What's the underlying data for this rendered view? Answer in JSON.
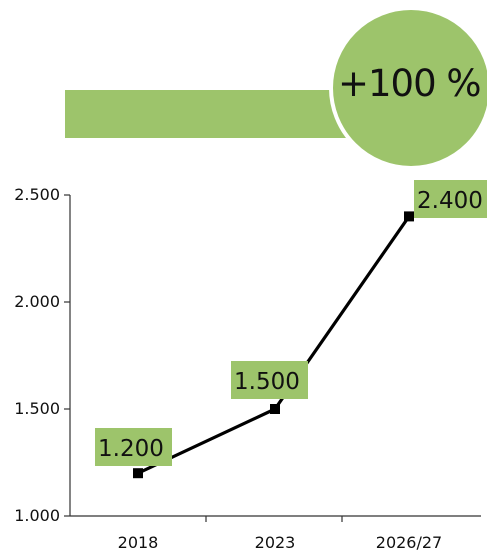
{
  "headline": {
    "growth": "+100 %"
  },
  "colors": {
    "accent": "#9dc46b",
    "line": "#000000",
    "text": "#111111"
  },
  "chart_data": {
    "type": "line",
    "categories": [
      "2018",
      "2023",
      "2026/27"
    ],
    "values": [
      1200,
      1500,
      2400
    ],
    "value_labels": [
      "1.200",
      "1.500",
      "2.400"
    ],
    "yticks": [
      1000,
      1500,
      2000,
      2500
    ],
    "ytick_labels": [
      "1.000",
      "1.500",
      "2.000",
      "2.500"
    ],
    "ylim": [
      1000,
      2500
    ],
    "grid": false,
    "title": "",
    "xlabel": "",
    "ylabel": ""
  }
}
